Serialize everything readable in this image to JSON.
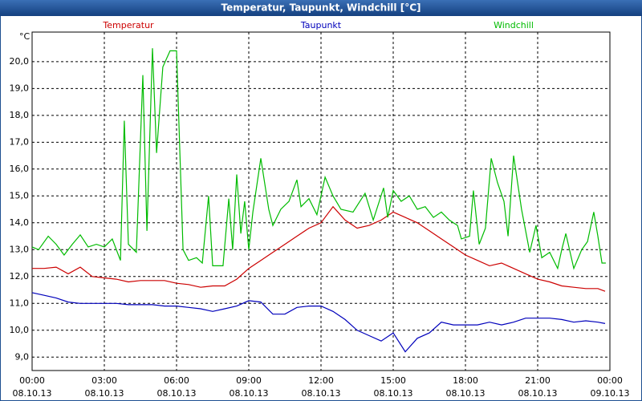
{
  "chart_data": {
    "type": "line",
    "title": "Temperatur, Taupunkt, Windchill [°C]",
    "y_label": "°C",
    "xlim": [
      0,
      24
    ],
    "ylim": [
      8.5,
      21.1
    ],
    "grid": true,
    "xticks": [
      {
        "value": 0,
        "label": "00:00",
        "date": "08.10.13"
      },
      {
        "value": 3,
        "label": "03:00",
        "date": "08.10.13"
      },
      {
        "value": 6,
        "label": "06:00",
        "date": "08.10.13"
      },
      {
        "value": 9,
        "label": "09:00",
        "date": "08.10.13"
      },
      {
        "value": 12,
        "label": "12:00",
        "date": "08.10.13"
      },
      {
        "value": 15,
        "label": "15:00",
        "date": "08.10.13"
      },
      {
        "value": 18,
        "label": "18:00",
        "date": "08.10.13"
      },
      {
        "value": 21,
        "label": "21:00",
        "date": "08.10.13"
      },
      {
        "value": 24,
        "label": "00:00",
        "date": "09.10.13"
      }
    ],
    "yticks": [
      {
        "value": 9,
        "label": "9,0"
      },
      {
        "value": 10,
        "label": "10,0"
      },
      {
        "value": 11,
        "label": "11,0"
      },
      {
        "value": 12,
        "label": "12,0"
      },
      {
        "value": 13,
        "label": "13,0"
      },
      {
        "value": 14,
        "label": "14,0"
      },
      {
        "value": 15,
        "label": "15,0"
      },
      {
        "value": 16,
        "label": "16,0"
      },
      {
        "value": 17,
        "label": "17,0"
      },
      {
        "value": 18,
        "label": "18,0"
      },
      {
        "value": 19,
        "label": "19,0"
      },
      {
        "value": 20,
        "label": "20,0"
      }
    ],
    "series": [
      {
        "name": "Temperatur",
        "color": "#cc0000",
        "x": [
          0,
          0.5,
          1,
          1.5,
          2,
          2.5,
          3,
          3.5,
          4,
          4.5,
          5,
          5.5,
          6,
          6.5,
          7,
          7.5,
          8,
          8.5,
          9,
          9.5,
          10,
          10.5,
          11,
          11.5,
          12,
          12.5,
          13,
          13.5,
          14,
          14.5,
          15,
          15.5,
          16,
          16.5,
          17,
          17.5,
          18,
          18.5,
          19,
          19.5,
          20,
          20.5,
          21,
          21.5,
          22,
          22.5,
          23,
          23.5,
          23.8
        ],
        "values": [
          12.3,
          12.3,
          12.35,
          12.1,
          12.35,
          12.0,
          11.95,
          11.9,
          11.8,
          11.85,
          11.85,
          11.85,
          11.75,
          11.7,
          11.6,
          11.65,
          11.65,
          11.9,
          12.3,
          12.6,
          12.9,
          13.2,
          13.5,
          13.8,
          14.0,
          14.6,
          14.1,
          13.8,
          13.9,
          14.1,
          14.4,
          14.2,
          14.0,
          13.7,
          13.4,
          13.1,
          12.8,
          12.6,
          12.4,
          12.5,
          12.3,
          12.1,
          11.9,
          11.8,
          11.65,
          11.6,
          11.55,
          11.55,
          11.45
        ]
      },
      {
        "name": "Taupunkt",
        "color": "#0000bb",
        "x": [
          0,
          0.5,
          1,
          1.5,
          2,
          2.5,
          3,
          3.5,
          4,
          4.5,
          5,
          5.5,
          6,
          6.5,
          7,
          7.5,
          8,
          8.5,
          9,
          9.5,
          10,
          10.5,
          11,
          11.5,
          12,
          12.5,
          13,
          13.5,
          14,
          14.5,
          15,
          15.5,
          16,
          16.5,
          17,
          17.5,
          18,
          18.5,
          19,
          19.5,
          20,
          20.5,
          21,
          21.5,
          22,
          22.5,
          23,
          23.5,
          23.8
        ],
        "values": [
          11.4,
          11.3,
          11.2,
          11.05,
          11.0,
          11.0,
          11.0,
          11.0,
          10.95,
          10.95,
          10.95,
          10.9,
          10.9,
          10.85,
          10.8,
          10.7,
          10.8,
          10.9,
          11.1,
          11.05,
          10.6,
          10.6,
          10.85,
          10.9,
          10.9,
          10.7,
          10.4,
          10.0,
          9.8,
          9.6,
          9.9,
          9.2,
          9.7,
          9.9,
          10.3,
          10.2,
          10.2,
          10.2,
          10.3,
          10.2,
          10.3,
          10.45,
          10.45,
          10.45,
          10.4,
          10.3,
          10.35,
          10.3,
          10.25
        ]
      },
      {
        "name": "Windchill",
        "color": "#00bb00",
        "x": [
          0,
          0.27,
          0.67,
          1.0,
          1.33,
          1.67,
          2.0,
          2.33,
          2.67,
          3.0,
          3.33,
          3.67,
          3.83,
          4.0,
          4.33,
          4.6,
          4.77,
          5.0,
          5.17,
          5.43,
          5.73,
          6.0,
          6.27,
          6.5,
          6.83,
          7.07,
          7.33,
          7.5,
          7.93,
          8.17,
          8.33,
          8.5,
          8.67,
          8.83,
          9.0,
          9.17,
          9.5,
          9.83,
          10.0,
          10.33,
          10.67,
          11.0,
          11.17,
          11.5,
          11.83,
          12.17,
          12.5,
          12.83,
          13.33,
          13.83,
          14.17,
          14.6,
          14.77,
          15.0,
          15.33,
          15.67,
          16.0,
          16.33,
          16.67,
          17.0,
          17.33,
          17.67,
          17.83,
          18.17,
          18.33,
          18.57,
          18.83,
          19.07,
          19.33,
          19.6,
          19.77,
          20.0,
          20.33,
          20.67,
          20.93,
          21.17,
          21.5,
          21.83,
          22.0,
          22.17,
          22.5,
          22.83,
          23.07,
          23.33,
          23.5,
          23.67,
          23.83
        ],
        "values": [
          13.1,
          13.0,
          13.5,
          13.2,
          12.8,
          13.2,
          13.55,
          13.1,
          13.2,
          13.1,
          13.4,
          12.6,
          17.8,
          13.2,
          12.9,
          19.5,
          13.7,
          20.5,
          16.6,
          19.8,
          20.4,
          20.4,
          13.0,
          12.6,
          12.7,
          12.5,
          15.0,
          12.4,
          12.4,
          14.9,
          13.0,
          15.8,
          13.6,
          14.8,
          13.0,
          14.4,
          16.4,
          14.5,
          13.9,
          14.5,
          14.8,
          15.6,
          14.6,
          14.9,
          14.3,
          15.7,
          15.0,
          14.5,
          14.4,
          15.1,
          14.1,
          15.3,
          14.2,
          15.2,
          14.8,
          15.0,
          14.5,
          14.6,
          14.2,
          14.4,
          14.1,
          13.9,
          13.4,
          13.5,
          15.2,
          13.2,
          13.8,
          16.4,
          15.5,
          14.8,
          13.5,
          16.5,
          14.5,
          12.9,
          13.9,
          12.7,
          12.9,
          12.3,
          13.0,
          13.6,
          12.3,
          13.0,
          13.3,
          14.4,
          13.5,
          12.5,
          12.5
        ]
      }
    ]
  }
}
